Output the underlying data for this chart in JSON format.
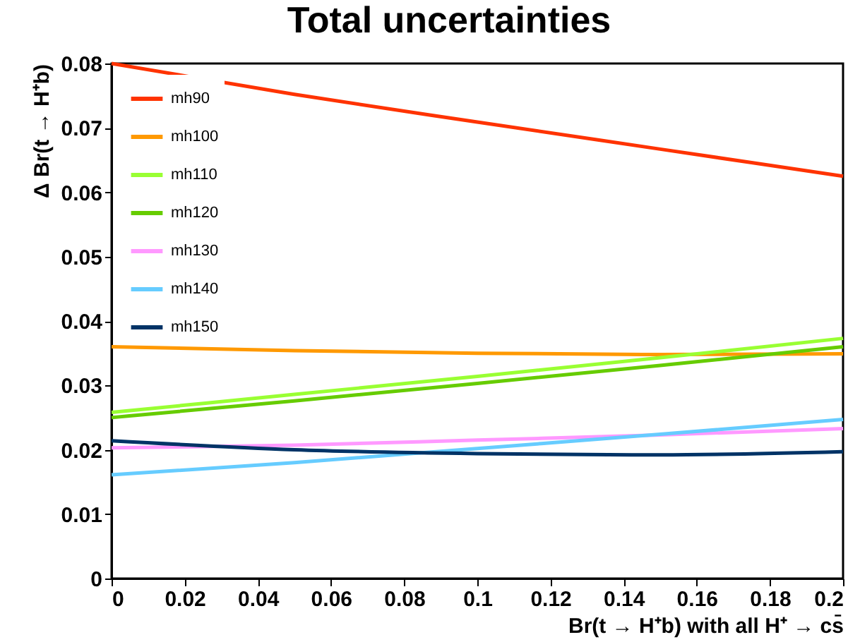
{
  "chart_data": {
    "type": "line",
    "title": "Total uncertainties",
    "xlabel": "Br(t → H⁺b) with all H⁺ → cs̄",
    "ylabel": "Δ Br(t → H⁺b)",
    "x": [
      0,
      0.05,
      0.1,
      0.15,
      0.2
    ],
    "series": [
      {
        "name": "mh90",
        "color": "#ff3300",
        "values": [
          0.08,
          0.0752,
          0.0709,
          0.0667,
          0.0625
        ]
      },
      {
        "name": "mh100",
        "color": "#ff9900",
        "values": [
          0.036,
          0.0354,
          0.035,
          0.0348,
          0.0349
        ]
      },
      {
        "name": "mh110",
        "color": "#99ff33",
        "values": [
          0.0258,
          0.0286,
          0.0314,
          0.0343,
          0.0373
        ]
      },
      {
        "name": "mh120",
        "color": "#66cc00",
        "values": [
          0.025,
          0.0276,
          0.0303,
          0.0331,
          0.036
        ]
      },
      {
        "name": "mh130",
        "color": "#ff99ff",
        "values": [
          0.0203,
          0.0207,
          0.0215,
          0.0223,
          0.0233
        ]
      },
      {
        "name": "mh140",
        "color": "#66ccff",
        "values": [
          0.0161,
          0.018,
          0.0202,
          0.0224,
          0.0247
        ]
      },
      {
        "name": "mh150",
        "color": "#003366",
        "values": [
          0.0214,
          0.02,
          0.0194,
          0.0192,
          0.0197
        ]
      }
    ],
    "xlim": [
      0,
      0.2
    ],
    "xticks": [
      0,
      0.02,
      0.04,
      0.06,
      0.08,
      0.1,
      0.12,
      0.14,
      0.16,
      0.18,
      0.2
    ],
    "ylim": [
      0,
      0.08
    ],
    "yticks": [
      0,
      0.01,
      0.02,
      0.03,
      0.04,
      0.05,
      0.06,
      0.07,
      0.08
    ],
    "grid": false,
    "legend": "top left",
    "marker": "none",
    "line_style": "solid"
  }
}
